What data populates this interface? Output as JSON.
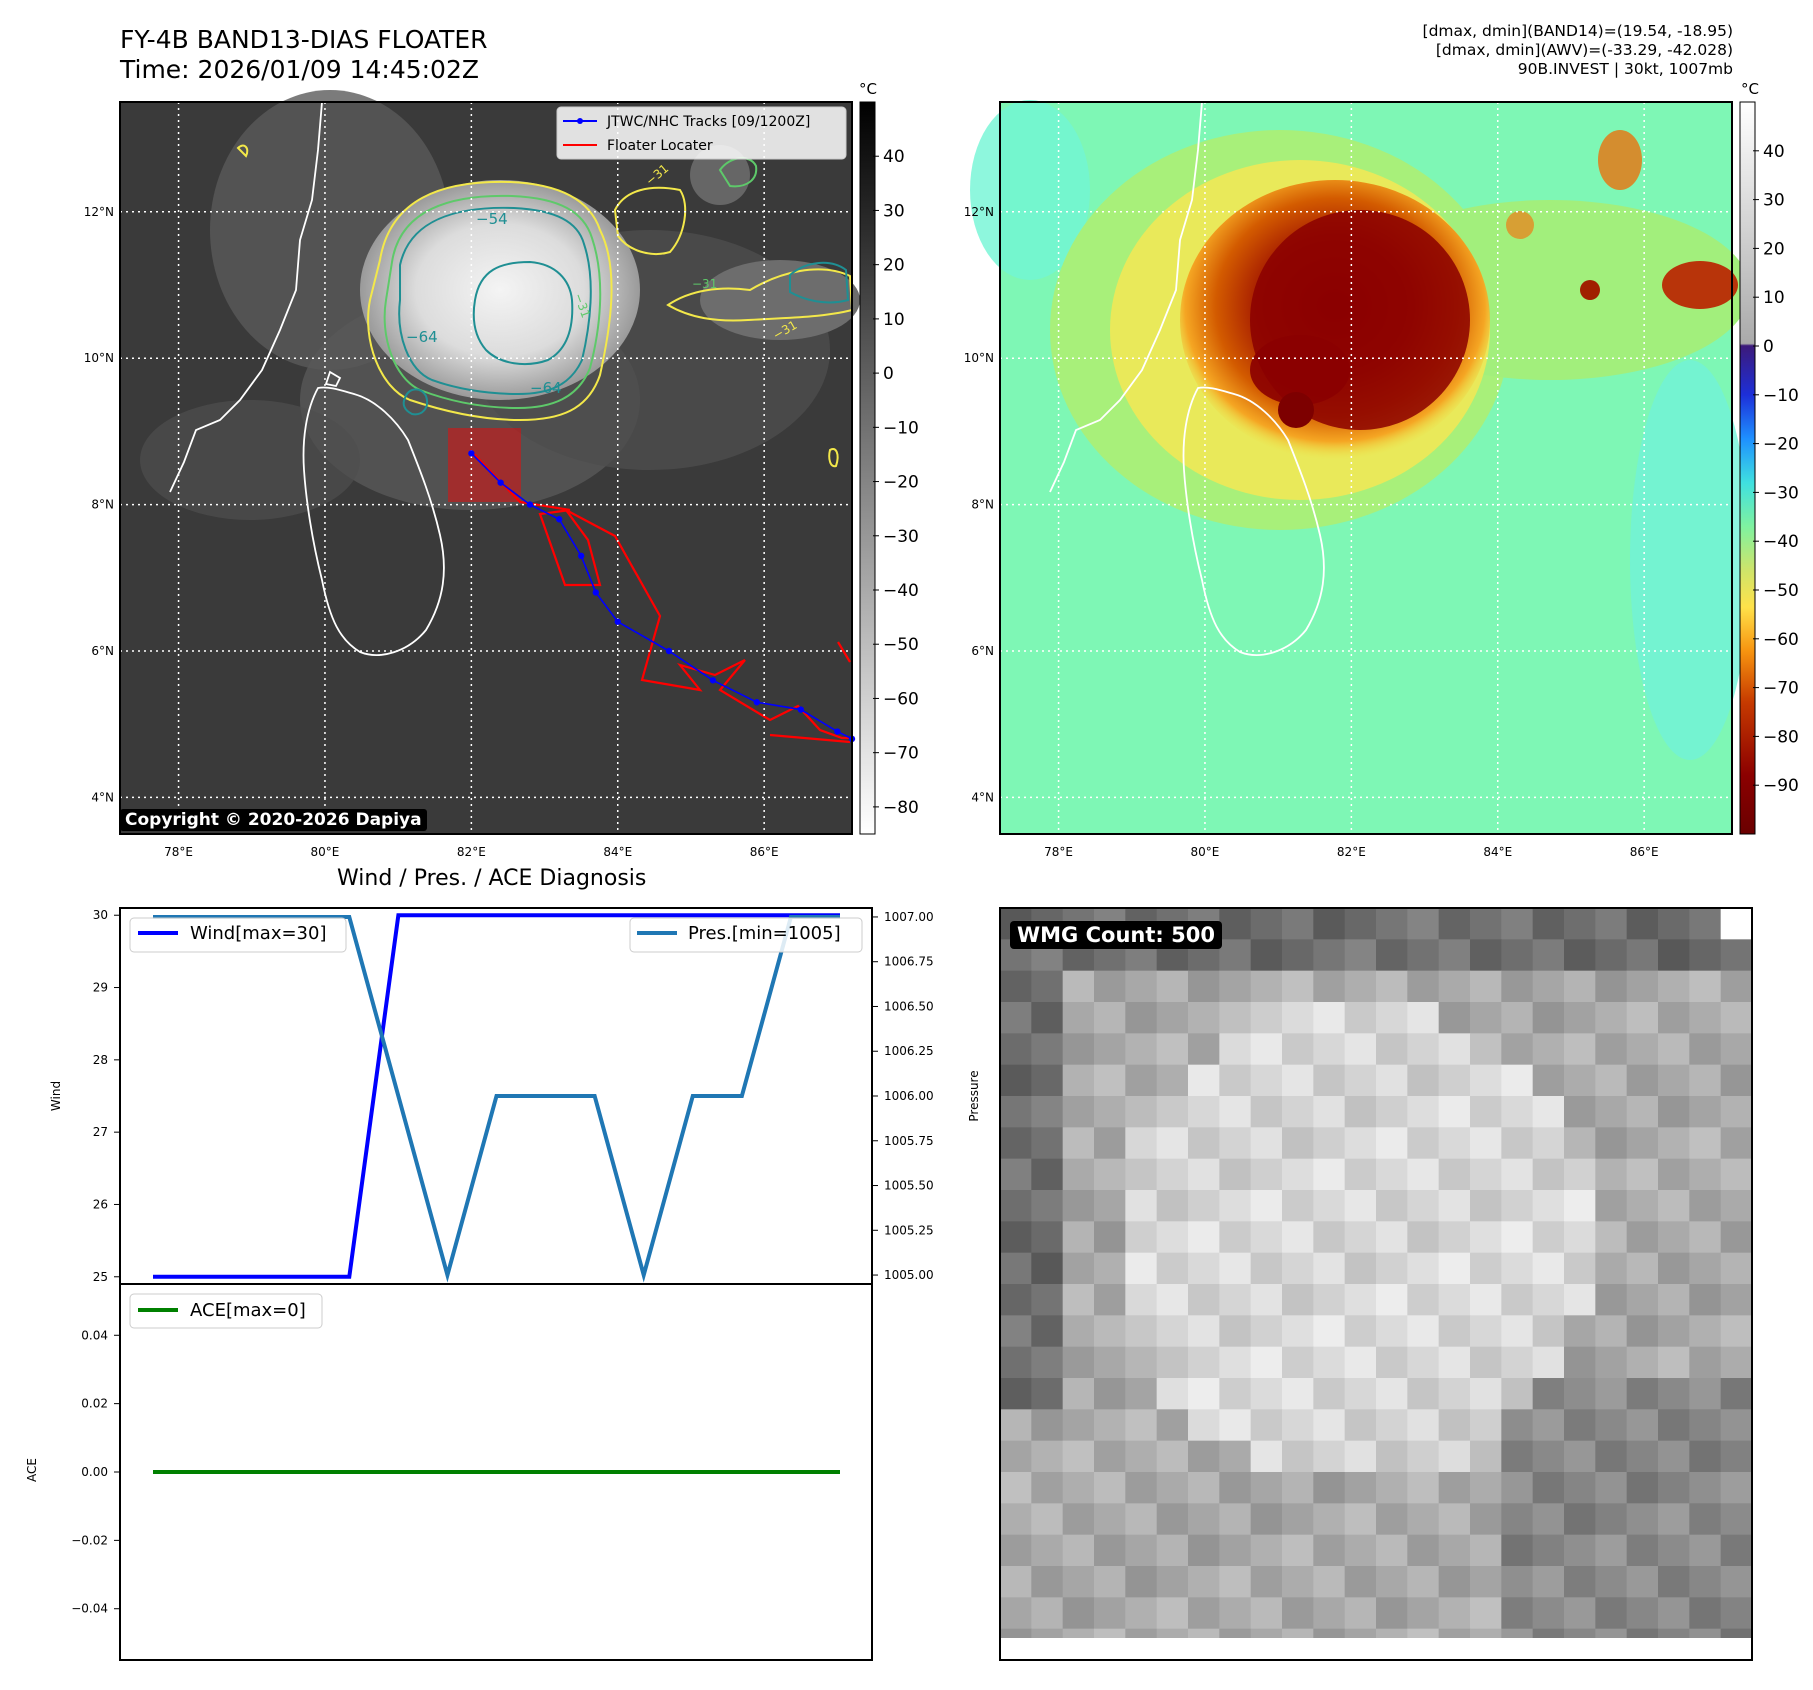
{
  "header": {
    "title_line1": "FY-4B BAND13-DIAS FLOATER",
    "title_line2": "Time: 2026/01/09 14:45:02Z",
    "right_line1": "[dmax, dmin](BAND14)=(19.54, -18.95)",
    "right_line2": "[dmax, dmin](AWV)=(-33.29, -42.028)",
    "right_line3": "90B.INVEST | 30kt, 1007mb"
  },
  "copyright": "Copyright © 2020-2026 Dapiya",
  "map": {
    "lon_ticks": [
      "78°E",
      "80°E",
      "82°E",
      "84°E",
      "86°E"
    ],
    "lat_ticks": [
      "12°N",
      "10°N",
      "8°N",
      "6°N",
      "4°N"
    ],
    "lon_values": [
      78,
      80,
      82,
      84,
      86
    ],
    "lat_values": [
      12,
      10,
      8,
      6,
      4
    ],
    "lon_range": [
      77.2,
      87.2
    ],
    "lat_range": [
      3.5,
      13.5
    ]
  },
  "legend": {
    "tracks": "JTWC/NHC Tracks [09/1200Z]",
    "floater": "Floater Locater"
  },
  "contour_labels": [
    "−54",
    "−64",
    "−64",
    "−31",
    "−31",
    "−31",
    "−31"
  ],
  "colorbar_unit": "°C",
  "colorbar1_ticks": [
    "40",
    "30",
    "20",
    "10",
    "0",
    "−10",
    "−20",
    "−30",
    "−40",
    "−50",
    "−60",
    "−70",
    "−80"
  ],
  "colorbar2_ticks": [
    "40",
    "30",
    "20",
    "10",
    "0",
    "−10",
    "−20",
    "−30",
    "−40",
    "−50",
    "−60",
    "−70",
    "−80",
    "−90"
  ],
  "colors": {
    "track": "#0000ff",
    "floater": "#ff0000",
    "wind": "#0000ff",
    "pressure": "#1f77b4",
    "ace": "#008000",
    "contour_yellow": "#f3e84a",
    "contour_green": "#5ec96a",
    "contour_teal": "#1f8f93"
  },
  "track_points": [
    {
      "lon": 82.0,
      "lat": 8.7
    },
    {
      "lon": 82.4,
      "lat": 8.3
    },
    {
      "lon": 82.8,
      "lat": 8.0
    },
    {
      "lon": 83.2,
      "lat": 7.8
    },
    {
      "lon": 83.5,
      "lat": 7.3
    },
    {
      "lon": 83.7,
      "lat": 6.8
    },
    {
      "lon": 84.0,
      "lat": 6.4
    },
    {
      "lon": 84.7,
      "lat": 6.0
    },
    {
      "lon": 85.3,
      "lat": 5.6
    },
    {
      "lon": 85.9,
      "lat": 5.3
    },
    {
      "lon": 86.5,
      "lat": 5.2
    },
    {
      "lon": 87.0,
      "lat": 4.9
    },
    {
      "lon": 87.2,
      "lat": 4.8
    }
  ],
  "diagnosis_title": "Wind / Pres. / ACE Diagnosis",
  "wmg_label": "WMG Count: 500",
  "chart_data": [
    {
      "type": "line",
      "title": "Wind / Pres. / ACE Diagnosis",
      "ylabel": "Wind",
      "ylabel_right": "Pressure",
      "x": [
        0,
        1,
        2,
        3,
        4,
        5,
        6,
        7,
        8,
        9,
        10,
        11,
        12,
        13,
        14
      ],
      "ylim": [
        24.9,
        30.1
      ],
      "ylim_right": [
        1004.95,
        1007.05
      ],
      "yticks": [
        "30",
        "29",
        "28",
        "27",
        "26",
        "25"
      ],
      "yticks_values": [
        30,
        29,
        28,
        27,
        26,
        25
      ],
      "yticks_right": [
        "1007.00",
        "1006.75",
        "1006.50",
        "1006.25",
        "1006.00",
        "1005.75",
        "1005.50",
        "1005.25",
        "1005.00"
      ],
      "yticks_right_values": [
        1007.0,
        1006.75,
        1006.5,
        1006.25,
        1006.0,
        1005.75,
        1005.5,
        1005.25,
        1005.0
      ],
      "series": [
        {
          "name": "Wind[max=30]",
          "axis": "left",
          "values": [
            25,
            25,
            25,
            25,
            25,
            30,
            30,
            30,
            30,
            30,
            30,
            30,
            30,
            30,
            30
          ]
        },
        {
          "name": "Pres.[min=1005]",
          "axis": "right",
          "values": [
            1007,
            1007,
            1007,
            1007,
            1007,
            1006,
            1005,
            1006,
            1006,
            1006,
            1005,
            1006,
            1006,
            1007,
            1007
          ]
        }
      ]
    },
    {
      "type": "line",
      "ylabel": "ACE",
      "x": [
        0,
        1,
        2,
        3,
        4,
        5,
        6,
        7,
        8,
        9,
        10,
        11,
        12,
        13,
        14
      ],
      "ylim": [
        -0.055,
        0.055
      ],
      "yticks": [
        "0.04",
        "0.02",
        "0.00",
        "−0.02",
        "−0.04"
      ],
      "yticks_values": [
        0.04,
        0.02,
        0.0,
        -0.02,
        -0.04
      ],
      "series": [
        {
          "name": "ACE[max=0]",
          "values": [
            0,
            0,
            0,
            0,
            0,
            0,
            0,
            0,
            0,
            0,
            0,
            0,
            0,
            0,
            0
          ]
        }
      ]
    }
  ]
}
